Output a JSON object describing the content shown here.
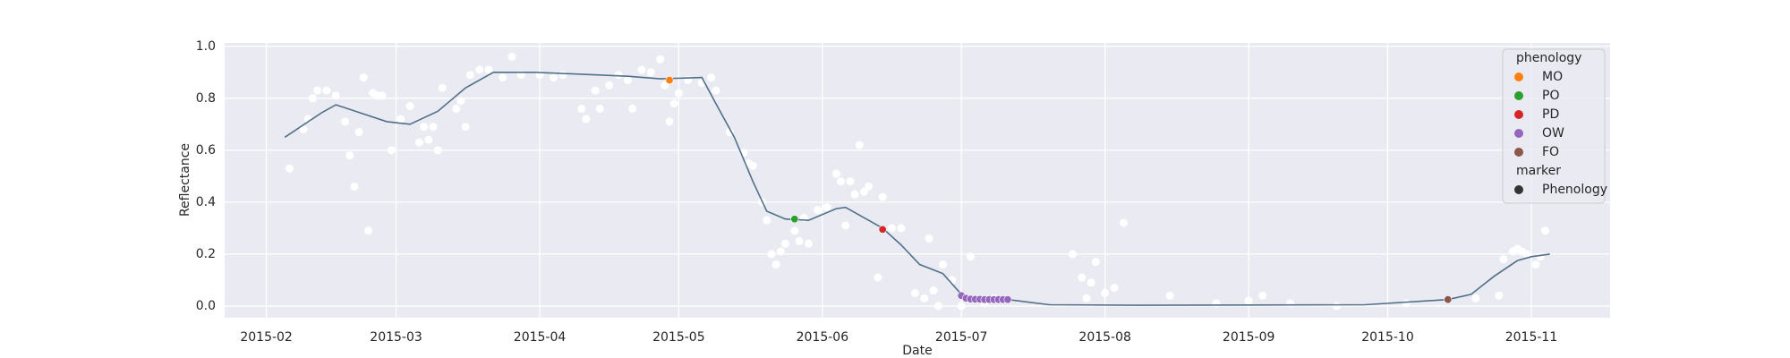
{
  "chart_data": {
    "type": "scatter",
    "xlabel": "Date",
    "ylabel": "Reflectance",
    "xlim": [
      "2015-01-23",
      "2015-11-18"
    ],
    "xticks": [
      {
        "value": "2015-02-01",
        "label": "2015-02"
      },
      {
        "value": "2015-03-01",
        "label": "2015-03"
      },
      {
        "value": "2015-04-01",
        "label": "2015-04"
      },
      {
        "value": "2015-05-01",
        "label": "2015-05"
      },
      {
        "value": "2015-06-01",
        "label": "2015-06"
      },
      {
        "value": "2015-07-01",
        "label": "2015-07"
      },
      {
        "value": "2015-08-01",
        "label": "2015-08"
      },
      {
        "value": "2015-09-01",
        "label": "2015-09"
      },
      {
        "value": "2015-10-01",
        "label": "2015-10"
      },
      {
        "value": "2015-11-01",
        "label": "2015-11"
      }
    ],
    "ylim": [
      -0.045,
      1.013
    ],
    "yticks": [
      {
        "value": 0,
        "label": "0.0"
      },
      0.2,
      0.4,
      0.6,
      0.8,
      {
        "value": 1,
        "label": "1.0"
      }
    ],
    "grid": true,
    "background": "#eaeaf2",
    "observations": {
      "color": "#ffffff",
      "x": [
        "2015-02-06",
        "2015-02-09",
        "2015-02-10",
        "2015-02-11",
        "2015-02-12",
        "2015-02-14",
        "2015-02-16",
        "2015-02-18",
        "2015-02-19",
        "2015-02-20",
        "2015-02-21",
        "2015-02-22",
        "2015-02-23",
        "2015-02-24",
        "2015-02-25",
        "2015-02-26",
        "2015-02-28",
        "2015-03-02",
        "2015-03-04",
        "2015-03-06",
        "2015-03-07",
        "2015-03-08",
        "2015-03-09",
        "2015-03-10",
        "2015-03-11",
        "2015-03-14",
        "2015-03-15",
        "2015-03-16",
        "2015-03-17",
        "2015-03-19",
        "2015-03-21",
        "2015-03-24",
        "2015-03-26",
        "2015-03-28",
        "2015-04-01",
        "2015-04-04",
        "2015-04-06",
        "2015-04-10",
        "2015-04-11",
        "2015-04-13",
        "2015-04-14",
        "2015-04-16",
        "2015-04-18",
        "2015-04-20",
        "2015-04-21",
        "2015-04-23",
        "2015-04-25",
        "2015-04-27",
        "2015-04-28",
        "2015-04-29",
        "2015-04-30",
        "2015-05-01",
        "2015-05-03",
        "2015-05-06",
        "2015-05-08",
        "2015-05-09",
        "2015-05-12",
        "2015-05-15",
        "2015-05-16",
        "2015-05-17",
        "2015-05-19",
        "2015-05-20",
        "2015-05-21",
        "2015-05-22",
        "2015-05-23",
        "2015-05-24",
        "2015-05-26",
        "2015-05-27",
        "2015-05-28",
        "2015-05-29",
        "2015-05-31",
        "2015-06-02",
        "2015-06-04",
        "2015-06-05",
        "2015-06-06",
        "2015-06-07",
        "2015-06-08",
        "2015-06-09",
        "2015-06-10",
        "2015-06-11",
        "2015-06-13",
        "2015-06-14",
        "2015-06-16",
        "2015-06-18",
        "2015-06-21",
        "2015-06-23",
        "2015-06-24",
        "2015-06-25",
        "2015-06-26",
        "2015-06-27",
        "2015-06-29",
        "2015-07-01",
        "2015-07-03",
        "2015-07-06",
        "2015-07-08",
        "2015-07-25",
        "2015-07-27",
        "2015-07-28",
        "2015-07-29",
        "2015-07-30",
        "2015-08-01",
        "2015-08-03",
        "2015-08-05",
        "2015-08-15",
        "2015-08-25",
        "2015-09-01",
        "2015-09-04",
        "2015-09-10",
        "2015-09-20",
        "2015-10-05",
        "2015-10-20",
        "2015-10-25",
        "2015-10-26",
        "2015-10-28",
        "2015-10-29",
        "2015-10-30",
        "2015-10-31",
        "2015-11-02",
        "2015-11-03",
        "2015-11-04"
      ],
      "values": [
        0.53,
        0.68,
        0.72,
        0.8,
        0.83,
        0.83,
        0.81,
        0.71,
        0.58,
        0.46,
        0.67,
        0.88,
        0.29,
        0.82,
        0.81,
        0.81,
        0.6,
        0.72,
        0.77,
        0.63,
        0.69,
        0.64,
        0.69,
        0.6,
        0.84,
        0.76,
        0.79,
        0.69,
        0.89,
        0.91,
        0.91,
        0.88,
        0.96,
        0.89,
        0.89,
        0.88,
        0.89,
        0.76,
        0.72,
        0.83,
        0.76,
        0.85,
        0.89,
        0.87,
        0.76,
        0.91,
        0.9,
        0.95,
        0.85,
        0.71,
        0.78,
        0.82,
        0.87,
        0.86,
        0.88,
        0.83,
        0.67,
        0.59,
        0.55,
        0.54,
        0.4,
        0.33,
        0.2,
        0.16,
        0.21,
        0.24,
        0.29,
        0.25,
        0.34,
        0.24,
        0.37,
        0.38,
        0.51,
        0.48,
        0.31,
        0.48,
        0.43,
        0.62,
        0.44,
        0.46,
        0.11,
        0.42,
        0.3,
        0.3,
        0.05,
        0.03,
        0.26,
        0.06,
        0.0,
        0.16,
        0.1,
        0.0,
        0.19,
        0.01,
        0.03,
        0.2,
        0.11,
        0.03,
        0.09,
        0.17,
        0.05,
        0.07,
        0.32,
        0.04,
        0.01,
        0.02,
        0.04,
        0.01,
        0.0,
        0.01,
        0.03,
        0.04,
        0.18,
        0.21,
        0.22,
        0.21,
        0.2,
        0.16,
        0.19,
        0.29
      ]
    },
    "line": {
      "color": "#50708a",
      "x": [
        "2015-02-05",
        "2015-02-13",
        "2015-02-16",
        "2015-02-27",
        "2015-03-04",
        "2015-03-10",
        "2015-03-16",
        "2015-03-22",
        "2015-03-31",
        "2015-04-20",
        "2015-04-27",
        "2015-05-06",
        "2015-05-09",
        "2015-05-13",
        "2015-05-17",
        "2015-05-20",
        "2015-05-24",
        "2015-05-29",
        "2015-06-04",
        "2015-06-06",
        "2015-06-14",
        "2015-06-18",
        "2015-06-22",
        "2015-06-27",
        "2015-07-01",
        "2015-07-05",
        "2015-07-11",
        "2015-07-20",
        "2015-08-08",
        "2015-09-26",
        "2015-10-14",
        "2015-10-19",
        "2015-10-24",
        "2015-10-29",
        "2015-11-01",
        "2015-11-05"
      ],
      "values": [
        0.65,
        0.745,
        0.775,
        0.71,
        0.7,
        0.75,
        0.84,
        0.9,
        0.9,
        0.885,
        0.875,
        0.88,
        0.78,
        0.65,
        0.48,
        0.365,
        0.335,
        0.33,
        0.375,
        0.38,
        0.3,
        0.235,
        0.16,
        0.125,
        0.045,
        0.027,
        0.025,
        0.005,
        0.003,
        0.005,
        0.025,
        0.045,
        0.115,
        0.175,
        0.19,
        0.2
      ]
    },
    "series": [
      {
        "name": "MO",
        "color": "#ff7f0e",
        "x": [
          "2015-04-29"
        ],
        "values": [
          0.87
        ]
      },
      {
        "name": "PO",
        "color": "#2ca02c",
        "x": [
          "2015-05-26"
        ],
        "values": [
          0.335
        ]
      },
      {
        "name": "PD",
        "color": "#d62728",
        "x": [
          "2015-06-14"
        ],
        "values": [
          0.295
        ]
      },
      {
        "name": "OW",
        "color": "#9467bd",
        "x": [
          "2015-07-01",
          "2015-07-02",
          "2015-07-03",
          "2015-07-04",
          "2015-07-05",
          "2015-07-06",
          "2015-07-07",
          "2015-07-08",
          "2015-07-09",
          "2015-07-10",
          "2015-07-11"
        ],
        "values": [
          0.04,
          0.03,
          0.027,
          0.026,
          0.026,
          0.025,
          0.025,
          0.025,
          0.025,
          0.025,
          0.025
        ]
      },
      {
        "name": "FO",
        "color": "#8c564b",
        "x": [
          "2015-10-14"
        ],
        "values": [
          0.025
        ]
      }
    ],
    "legend": {
      "position": "upper right",
      "title": "phenology",
      "marker_title": "marker",
      "marker_label": "Phenology",
      "marker_color": "#333333"
    }
  }
}
